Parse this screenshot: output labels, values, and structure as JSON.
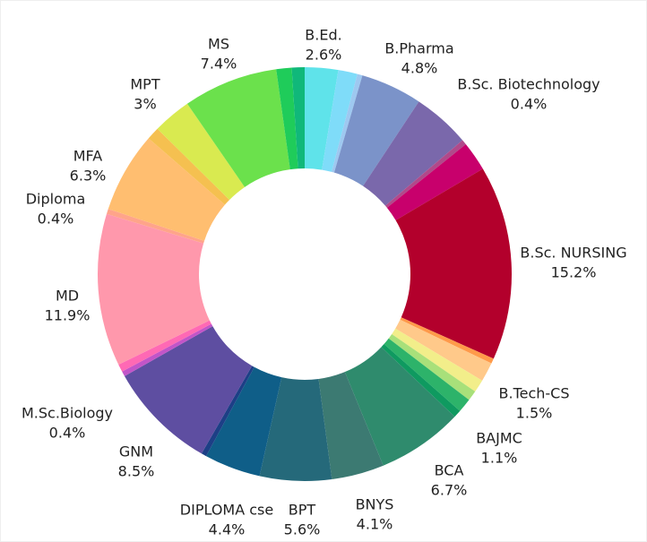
{
  "chart_data": {
    "type": "donut",
    "categories": [
      "B.Ed.",
      null,
      null,
      "B.Pharma",
      null,
      "B.Sc. Biotechnology",
      null,
      "B.Sc. NURSING",
      null,
      "B.Tech-CS",
      null,
      null,
      "BAJMC",
      null,
      "BCA",
      "BNYS",
      "BPT",
      "DIPLOMA cse",
      null,
      "GNM",
      "M.Sc.Biology",
      null,
      "MD",
      "Diploma",
      "MFA",
      null,
      "MPT",
      "MS",
      null,
      null
    ],
    "values": [
      2.6,
      1.5,
      0.4,
      4.8,
      4.5,
      0.4,
      2.3,
      15.2,
      0.4,
      1.5,
      1.0,
      0.8,
      1.1,
      0.6,
      6.7,
      4.1,
      5.6,
      4.4,
      0.4,
      8.5,
      0.4,
      0.6,
      11.9,
      0.4,
      6.3,
      1.0,
      3,
      7.4,
      1.2,
      1.0
    ],
    "value_labels": [
      "2.6%",
      null,
      null,
      "4.8%",
      null,
      "0.4%",
      null,
      "15.2%",
      null,
      "1.5%",
      null,
      null,
      "1.1%",
      null,
      "6.7%",
      "4.1%",
      "5.6%",
      "4.4%",
      null,
      "8.5%",
      "0.4%",
      null,
      "11.9%",
      "0.4%",
      "6.3%",
      null,
      "3%",
      "7.4%",
      null,
      null
    ],
    "colors": [
      "#5fe3ea",
      "#7fdcf9",
      "#9ec8f0",
      "#7b93c9",
      "#7a68ab",
      "#b04a8a",
      "#c8006c",
      "#b3002c",
      "#ff9a4a",
      "#ffc98a",
      "#f2ee8a",
      "#a8e07a",
      "#2db36a",
      "#0f9a60",
      "#2f8b6d",
      "#3c7a72",
      "#25697a",
      "#0f5e88",
      "#1d3f86",
      "#5e4ea1",
      "#c255c8",
      "#ff69b4",
      "#ff98ac",
      "#ffa48a",
      "#ffbe70",
      "#f5c050",
      "#d9ea50",
      "#6be14c",
      "#1fcc5a",
      "#10b87a"
    ]
  }
}
